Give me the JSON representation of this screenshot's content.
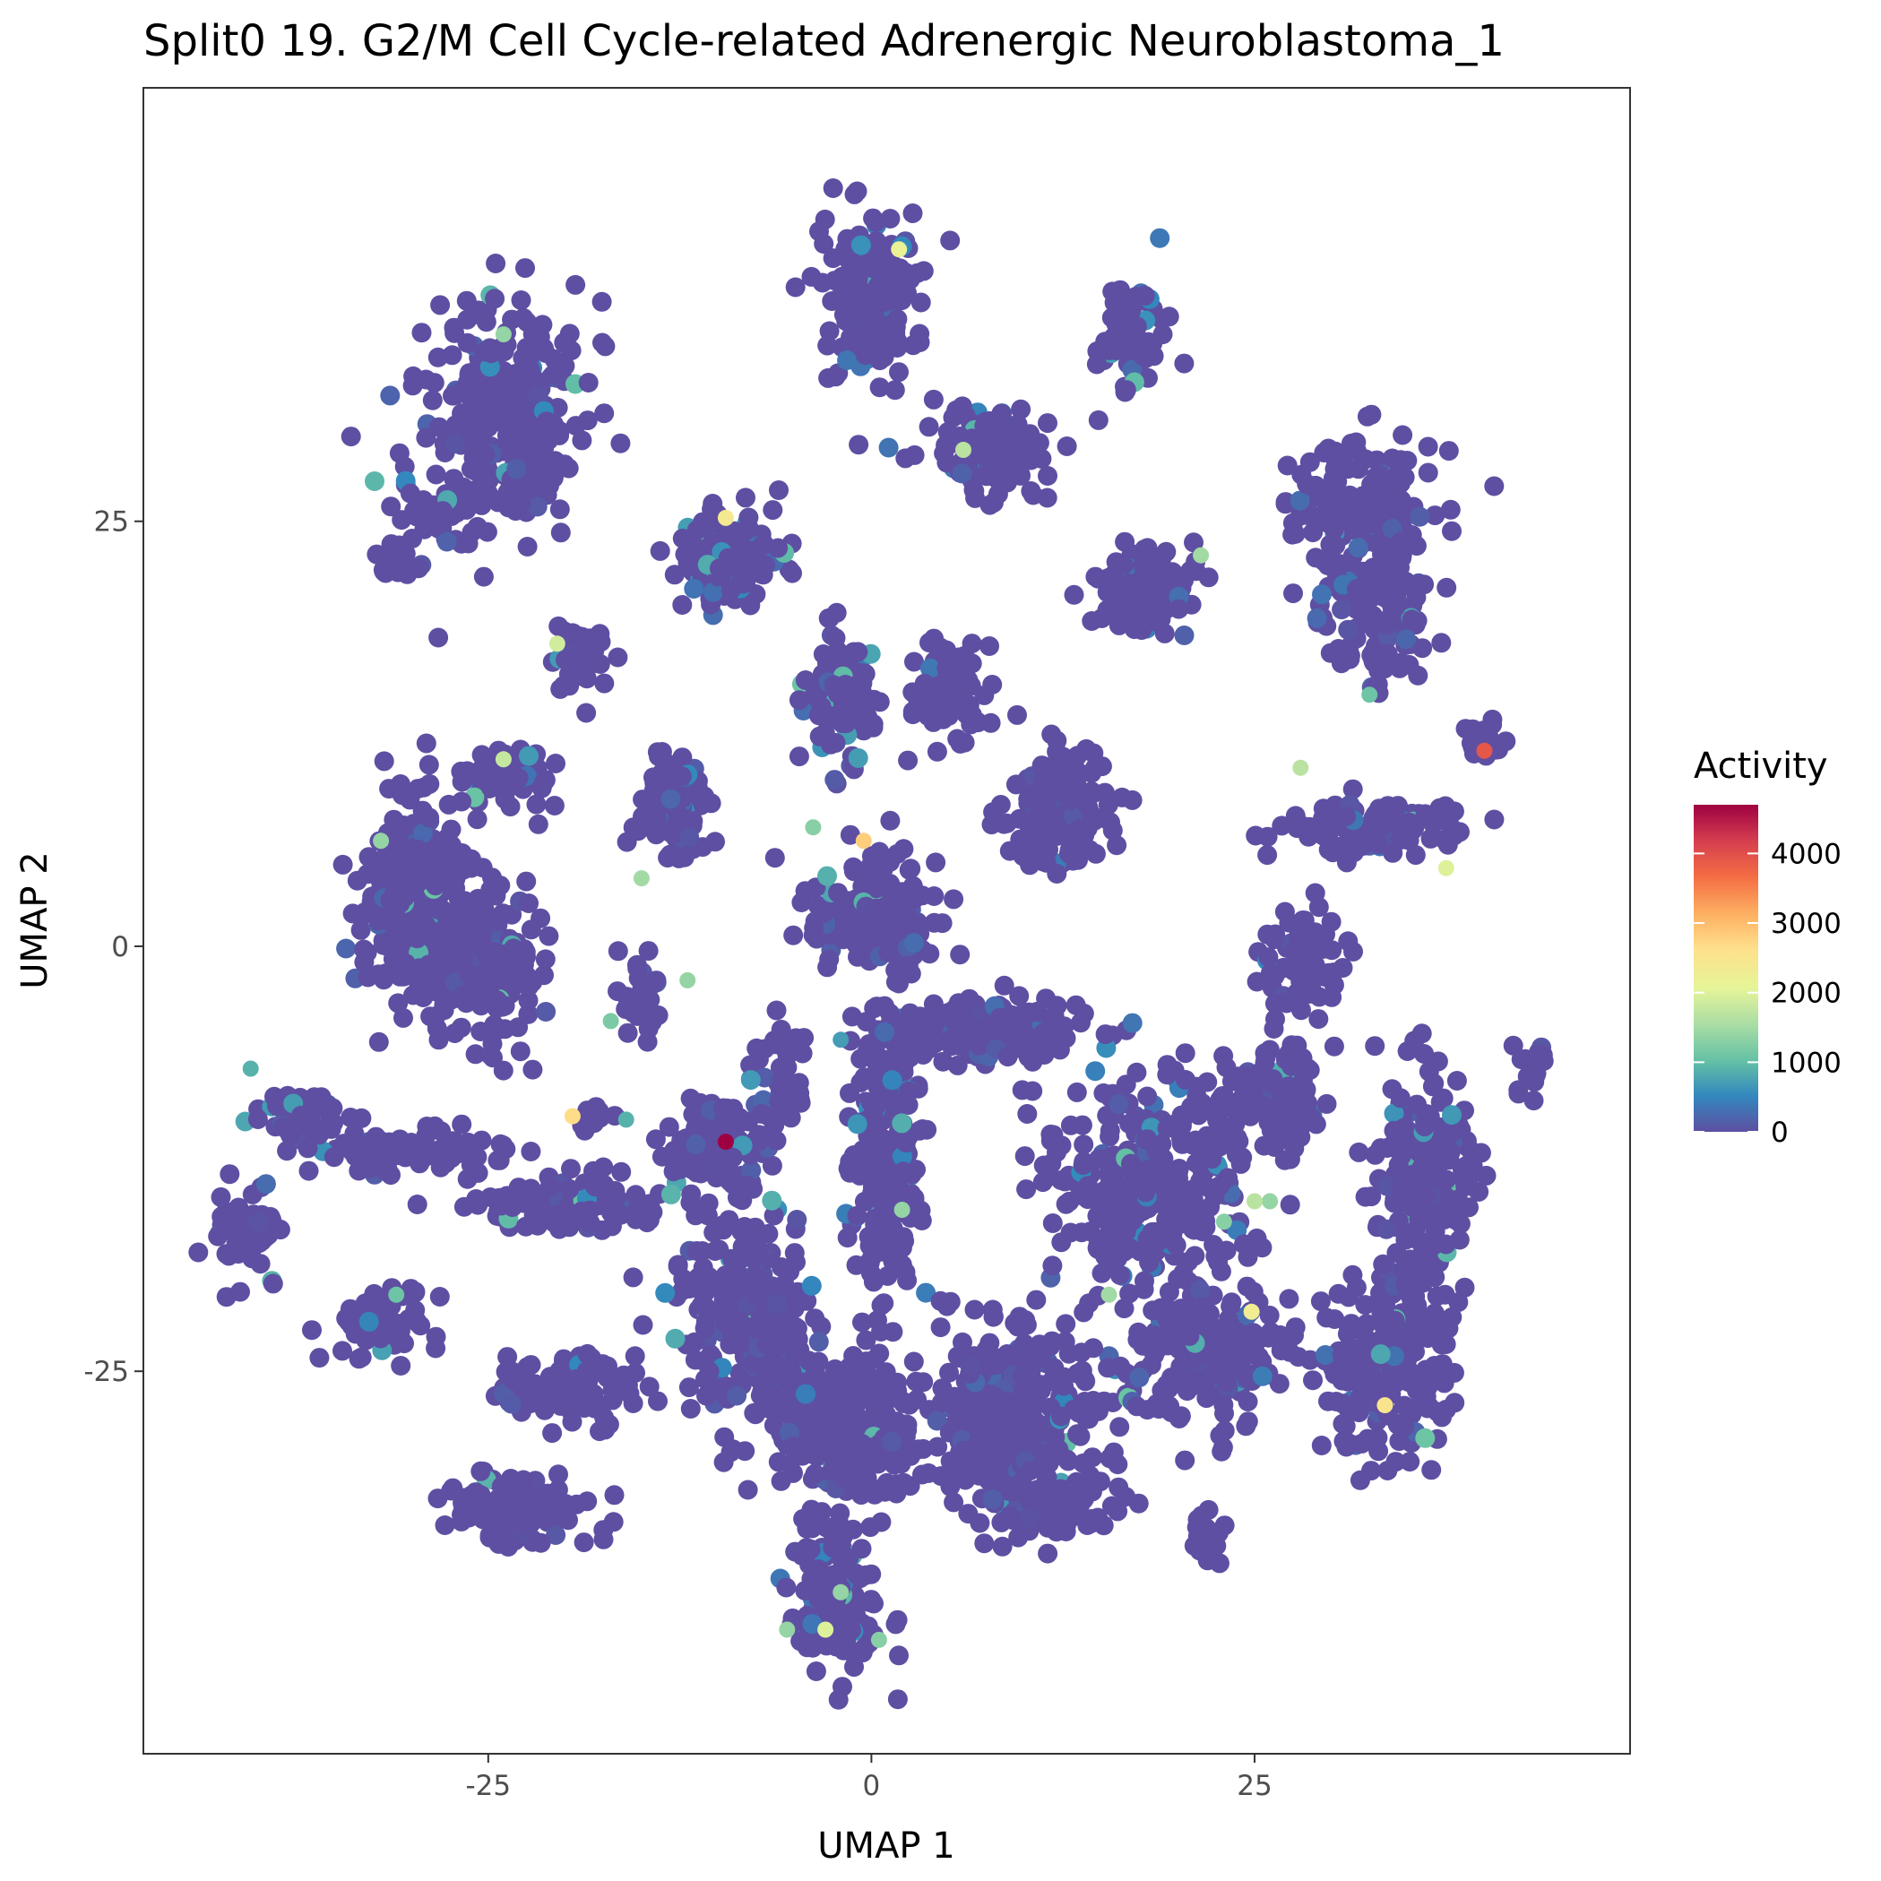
{
  "chart_data": {
    "type": "scatter",
    "title": "Split0 19. G2/M Cell Cycle-related Adrenergic Neuroblastoma_1",
    "xlabel": "UMAP 1",
    "ylabel": "UMAP 2",
    "xlim": [
      -47.5,
      49.5
    ],
    "ylim": [
      -47.5,
      50.5
    ],
    "x_ticks": [
      {
        "value": -25,
        "label": "-25"
      },
      {
        "value": 0,
        "label": "0"
      },
      {
        "value": 25,
        "label": "25"
      }
    ],
    "y_ticks": [
      {
        "value": 25,
        "label": "25"
      },
      {
        "value": 0,
        "label": "0"
      },
      {
        "value": -25,
        "label": "-25"
      }
    ],
    "grid": false,
    "legend": {
      "title": "Activity",
      "placement": "right",
      "min": 0,
      "max": 4700,
      "ticks": [
        {
          "value": 0,
          "label": "0"
        },
        {
          "value": 1000,
          "label": "1000"
        },
        {
          "value": 2000,
          "label": "2000"
        },
        {
          "value": 3000,
          "label": "3000"
        },
        {
          "value": 4000,
          "label": "4000"
        }
      ],
      "colormap": [
        "#5e4fa2",
        "#3288bd",
        "#66c2a5",
        "#abdda4",
        "#e6f598",
        "#fee08b",
        "#fdae61",
        "#f46d43",
        "#d53e4f",
        "#9e0142"
      ]
    },
    "point_color_default": "#5e4fa2",
    "clusters": [
      {
        "cx": -24,
        "cy": 32,
        "rx": 5,
        "ry": 6,
        "n": 260,
        "v": 60
      },
      {
        "cx": -28,
        "cy": 25,
        "rx": 3,
        "ry": 2,
        "n": 40,
        "v": 60
      },
      {
        "cx": -31,
        "cy": 22.5,
        "rx": 1.5,
        "ry": 1,
        "n": 20,
        "v": 200
      },
      {
        "cx": -22,
        "cy": 29,
        "rx": 2,
        "ry": 4,
        "n": 50,
        "v": 40
      },
      {
        "cx": 0,
        "cy": 38,
        "rx": 3,
        "ry": 4,
        "n": 170,
        "v": 150
      },
      {
        "cx": 17,
        "cy": 36,
        "rx": 2,
        "ry": 3,
        "n": 80,
        "v": 200
      },
      {
        "cx": 8,
        "cy": 29,
        "rx": 4,
        "ry": 2.5,
        "n": 130,
        "v": 150
      },
      {
        "cx": 32,
        "cy": 26,
        "rx": 4,
        "ry": 4,
        "n": 160,
        "v": 80
      },
      {
        "cx": 33,
        "cy": 20,
        "rx": 3,
        "ry": 4,
        "n": 140,
        "v": 90
      },
      {
        "cx": 18,
        "cy": 21,
        "rx": 3,
        "ry": 2,
        "n": 120,
        "v": 150
      },
      {
        "cx": -9,
        "cy": 23,
        "rx": 3,
        "ry": 2.5,
        "n": 150,
        "v": 220
      },
      {
        "cx": -30,
        "cy": 3,
        "rx": 3,
        "ry": 5,
        "n": 300,
        "v": 60
      },
      {
        "cx": -26,
        "cy": -1,
        "rx": 4,
        "ry": 4,
        "n": 240,
        "v": 60
      },
      {
        "cx": -24,
        "cy": 10,
        "rx": 2.5,
        "ry": 1.5,
        "n": 70,
        "v": 300
      },
      {
        "cx": -19,
        "cy": 17,
        "rx": 1.5,
        "ry": 1.8,
        "n": 40,
        "v": 200
      },
      {
        "cx": -13,
        "cy": 8,
        "rx": 2,
        "ry": 3,
        "n": 110,
        "v": 100
      },
      {
        "cx": -2,
        "cy": 15,
        "rx": 2,
        "ry": 3,
        "n": 140,
        "v": 100
      },
      {
        "cx": 5,
        "cy": 15,
        "rx": 2,
        "ry": 3,
        "n": 100,
        "v": 120
      },
      {
        "cx": 12,
        "cy": 8,
        "rx": 3,
        "ry": 3,
        "n": 160,
        "v": 40
      },
      {
        "cx": 0,
        "cy": 2,
        "rx": 4,
        "ry": 3,
        "n": 140,
        "v": 80
      },
      {
        "cx": 33,
        "cy": 7,
        "rx": 5,
        "ry": 1.5,
        "n": 110,
        "v": 120
      },
      {
        "cx": 40,
        "cy": 12,
        "rx": 1.5,
        "ry": 1,
        "n": 25,
        "v": 100
      },
      {
        "cx": 43,
        "cy": -7,
        "rx": 1,
        "ry": 1.5,
        "n": 20,
        "v": 30
      },
      {
        "cx": 28,
        "cy": -1,
        "rx": 2.5,
        "ry": 3,
        "n": 80,
        "v": 30
      },
      {
        "cx": -37,
        "cy": -10,
        "rx": 2.5,
        "ry": 1.5,
        "n": 60,
        "v": 50
      },
      {
        "cx": -41,
        "cy": -17,
        "rx": 1.8,
        "ry": 2.5,
        "n": 60,
        "v": 80
      },
      {
        "cx": -30,
        "cy": -12,
        "rx": 6,
        "ry": 1.2,
        "n": 80,
        "v": 40
      },
      {
        "cx": -20,
        "cy": -15,
        "rx": 6,
        "ry": 1.5,
        "n": 110,
        "v": 40
      },
      {
        "cx": -32,
        "cy": -22,
        "rx": 3,
        "ry": 2,
        "n": 70,
        "v": 120
      },
      {
        "cx": -18,
        "cy": -10,
        "rx": 1.2,
        "ry": 1,
        "n": 15,
        "v": 300
      },
      {
        "cx": -15,
        "cy": -3,
        "rx": 1.5,
        "ry": 2.5,
        "n": 40,
        "v": 80
      },
      {
        "cx": -10,
        "cy": -12,
        "rx": 3,
        "ry": 3,
        "n": 120,
        "v": 40
      },
      {
        "cx": -8,
        "cy": -22,
        "rx": 4,
        "ry": 5,
        "n": 260,
        "v": 40
      },
      {
        "cx": -20,
        "cy": -26,
        "rx": 4,
        "ry": 2,
        "n": 120,
        "v": 40
      },
      {
        "cx": -23,
        "cy": -33,
        "rx": 4,
        "ry": 2,
        "n": 120,
        "v": 40
      },
      {
        "cx": -2,
        "cy": -28,
        "rx": 5,
        "ry": 4,
        "n": 260,
        "v": 50
      },
      {
        "cx": -2,
        "cy": -38,
        "rx": 2.5,
        "ry": 4,
        "n": 150,
        "v": 150
      },
      {
        "cx": 1,
        "cy": -12,
        "rx": 2,
        "ry": 8,
        "n": 240,
        "v": 220
      },
      {
        "cx": 9,
        "cy": -27,
        "rx": 6,
        "ry": 5,
        "n": 300,
        "v": 80
      },
      {
        "cx": 7,
        "cy": -5,
        "rx": 6,
        "ry": 2,
        "n": 150,
        "v": 90
      },
      {
        "cx": 18,
        "cy": -14,
        "rx": 6,
        "ry": 6,
        "n": 320,
        "v": 120
      },
      {
        "cx": 22,
        "cy": -24,
        "rx": 5,
        "ry": 4,
        "n": 200,
        "v": 80
      },
      {
        "cx": 34,
        "cy": -24,
        "rx": 4,
        "ry": 5,
        "n": 220,
        "v": 80
      },
      {
        "cx": 36,
        "cy": -13,
        "rx": 3,
        "ry": 5,
        "n": 200,
        "v": 60
      },
      {
        "cx": 26,
        "cy": -9,
        "rx": 3,
        "ry": 3,
        "n": 120,
        "v": 120
      },
      {
        "cx": 22,
        "cy": -35,
        "rx": 1,
        "ry": 1.5,
        "n": 20,
        "v": 40
      },
      {
        "cx": 11,
        "cy": -33,
        "rx": 4,
        "ry": 2,
        "n": 100,
        "v": 40
      },
      {
        "cx": -6,
        "cy": -8,
        "rx": 1.5,
        "ry": 3,
        "n": 50,
        "v": 60
      }
    ],
    "hot_points": [
      {
        "x": -9.5,
        "y": -11.5,
        "v": 4700
      },
      {
        "x": 40,
        "y": 11.5,
        "v": 3900
      },
      {
        "x": -0.5,
        "y": 6.2,
        "v": 2800
      },
      {
        "x": -19.5,
        "y": -10,
        "v": 2650
      },
      {
        "x": 33.5,
        "y": -27,
        "v": 2500
      },
      {
        "x": 24.8,
        "y": -21.5,
        "v": 2300
      },
      {
        "x": 1.8,
        "y": 41,
        "v": 2200
      },
      {
        "x": -9.5,
        "y": 25.2,
        "v": 2400
      },
      {
        "x": -20.5,
        "y": 17.8,
        "v": 1900
      },
      {
        "x": 37.5,
        "y": 4.6,
        "v": 2000
      },
      {
        "x": -3,
        "y": -40.2,
        "v": 2000
      },
      {
        "x": 6,
        "y": 29.2,
        "v": 1700
      },
      {
        "x": 28,
        "y": 10.5,
        "v": 1700
      },
      {
        "x": 21.5,
        "y": 23,
        "v": 1500
      },
      {
        "x": -24,
        "y": 11,
        "v": 1800
      },
      {
        "x": -32,
        "y": 6.2,
        "v": 1400
      },
      {
        "x": -12,
        "y": -2,
        "v": 1400
      },
      {
        "x": -15,
        "y": 4,
        "v": 1500
      },
      {
        "x": -24,
        "y": 36,
        "v": 1400
      },
      {
        "x": 15.5,
        "y": -20.5,
        "v": 1500
      },
      {
        "x": 25,
        "y": -15,
        "v": 1700
      },
      {
        "x": 26,
        "y": -15,
        "v": 1400
      },
      {
        "x": 2,
        "y": -15.5,
        "v": 1400
      },
      {
        "x": -5.5,
        "y": -40.2,
        "v": 1400
      },
      {
        "x": -2,
        "y": -38,
        "v": 1400
      },
      {
        "x": -3.8,
        "y": 7,
        "v": 1300
      },
      {
        "x": 0.5,
        "y": -40.8,
        "v": 1300
      },
      {
        "x": -17,
        "y": -4.4,
        "v": 1200
      },
      {
        "x": 23,
        "y": -16.2,
        "v": 1300
      },
      {
        "x": -40.5,
        "y": -7.2,
        "v": 900
      },
      {
        "x": -16,
        "y": -10.2,
        "v": 900
      },
      {
        "x": -2,
        "y": -5.5,
        "v": 700
      },
      {
        "x": -31,
        "y": -20.5,
        "v": 1100
      },
      {
        "x": 32.5,
        "y": 14.8,
        "v": 1100
      }
    ]
  }
}
